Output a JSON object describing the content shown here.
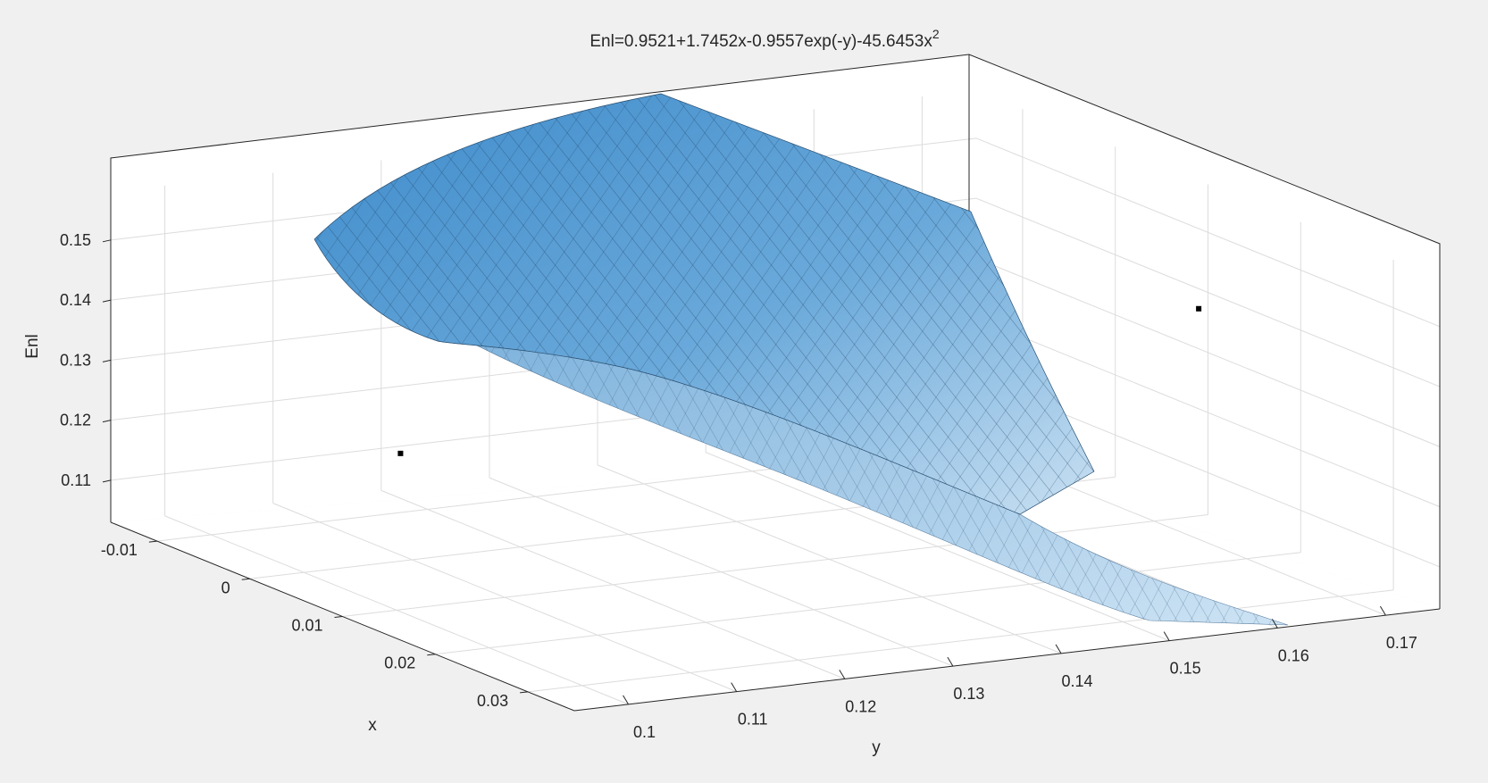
{
  "chart_data": {
    "type": "surface3d",
    "title": "Enl=0.9521+1.7452x-0.9557exp(-y)-45.6453x",
    "title_superscript": "2",
    "xlabel": "x",
    "ylabel": "y",
    "zlabel": "Enl",
    "x_ticks": [
      "-0.01",
      "0",
      "0.01",
      "0.02",
      "0.03"
    ],
    "y_ticks": [
      "0.1",
      "0.11",
      "0.12",
      "0.13",
      "0.14",
      "0.15",
      "0.16",
      "0.17"
    ],
    "z_ticks": [
      "0.11",
      "0.12",
      "0.13",
      "0.14",
      "0.15"
    ],
    "xlim": [
      -0.015,
      0.035
    ],
    "ylim": [
      0.095,
      0.175
    ],
    "zlim": [
      0.103,
      0.158
    ],
    "grid": true,
    "surface_color": "#4a95cf",
    "edge_color": "#1a1a1a",
    "points": [
      {
        "x": -0.003,
        "y": 0.1115,
        "z": 0.1185
      },
      {
        "x": 0.0125,
        "y": 0.172,
        "z": 0.1395
      }
    ]
  }
}
